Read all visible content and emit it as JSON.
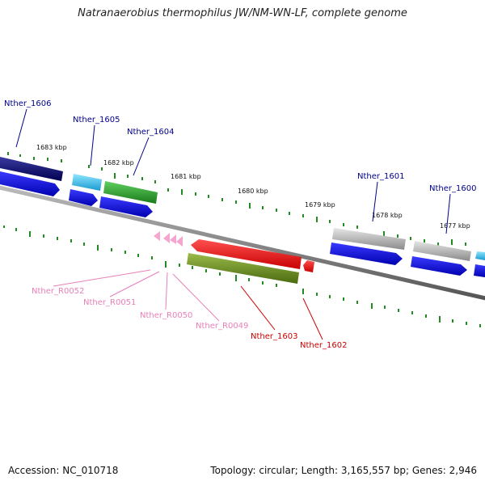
{
  "title": "Natranaerobius thermophilus JW/NM-WN-LF, complete genome",
  "footer": {
    "accession": "Accession: NC_010718",
    "summary": "Topology: circular; Length: 3,165,557 bp; Genes: 2,946"
  },
  "scale_labels": [
    "1683 kbp",
    "1682 kbp",
    "1681 kbp",
    "1680 kbp",
    "1679 kbp",
    "1678 kbp",
    "1677 kbp"
  ],
  "gene_labels": [
    {
      "name": "Nther_1606",
      "color": "#00008b"
    },
    {
      "name": "Nther_1605",
      "color": "#00008b"
    },
    {
      "name": "Nther_1604",
      "color": "#00008b"
    },
    {
      "name": "Nther_1601",
      "color": "#00008b"
    },
    {
      "name": "Nther_1600",
      "color": "#00008b"
    },
    {
      "name": "Nther_R0052",
      "color": "#e87fb8"
    },
    {
      "name": "Nther_R0051",
      "color": "#e87fb8"
    },
    {
      "name": "Nther_R0050",
      "color": "#e87fb8"
    },
    {
      "name": "Nther_R0049",
      "color": "#e87fb8"
    },
    {
      "name": "Nther_1603",
      "color": "#cc0000"
    },
    {
      "name": "Nther_1602",
      "color": "#cc0000"
    }
  ],
  "colors": {
    "backbone": "#808080",
    "tick": "#228b22",
    "cds_blue": "#0000ee",
    "cog_navy": "#000070",
    "cog_cyan": "#2ab8e8",
    "cog_green": "#2aa32a",
    "cog_grey": "#b8b8b8",
    "cog_red": "#ee0000",
    "cog_olive": "#6b8e23",
    "rna_pink": "#f4a6d0"
  }
}
